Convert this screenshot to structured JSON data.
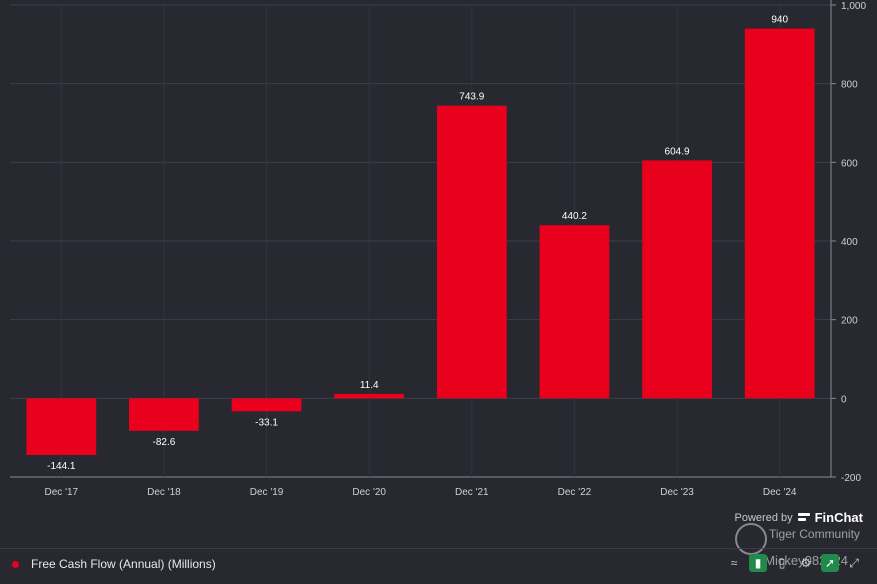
{
  "chart_data": {
    "type": "bar",
    "categories": [
      "Dec '17",
      "Dec '18",
      "Dec '19",
      "Dec '20",
      "Dec '21",
      "Dec '22",
      "Dec '23",
      "Dec '24"
    ],
    "series": [
      {
        "name": "Free Cash Flow (Annual) (Millions)",
        "values": [
          -144.1,
          -82.6,
          -33.1,
          11.4,
          743.9,
          440.2,
          604.9,
          940
        ]
      }
    ],
    "data_labels": [
      "-144.1",
      "-82.6",
      "-33.1",
      "11.4",
      "743.9",
      "440.2",
      "604.9",
      "940"
    ],
    "yticks": [
      -200,
      0,
      200,
      400,
      600,
      800,
      1000
    ],
    "ytick_labels": [
      "-200",
      "0",
      "200",
      "400",
      "600",
      "800",
      "1,000"
    ],
    "ylim": [
      -200,
      1000
    ],
    "y_axis_side": "right",
    "grid": true,
    "legend_position": "bottom-left",
    "bar_color": "#e8001d"
  },
  "legend": {
    "label": "Free Cash Flow (Annual) (Millions)",
    "color": "#e8001d"
  },
  "attribution": {
    "powered_by": "Powered by",
    "brand": "FinChat"
  },
  "watermark": {
    "community": "Tiger Community",
    "handle": "@Mickey082024"
  },
  "toolbar": {
    "icons": [
      "line-chart-icon",
      "bar-chart-icon",
      "column-chart-icon",
      "settings-icon",
      "share-icon",
      "expand-icon"
    ]
  }
}
